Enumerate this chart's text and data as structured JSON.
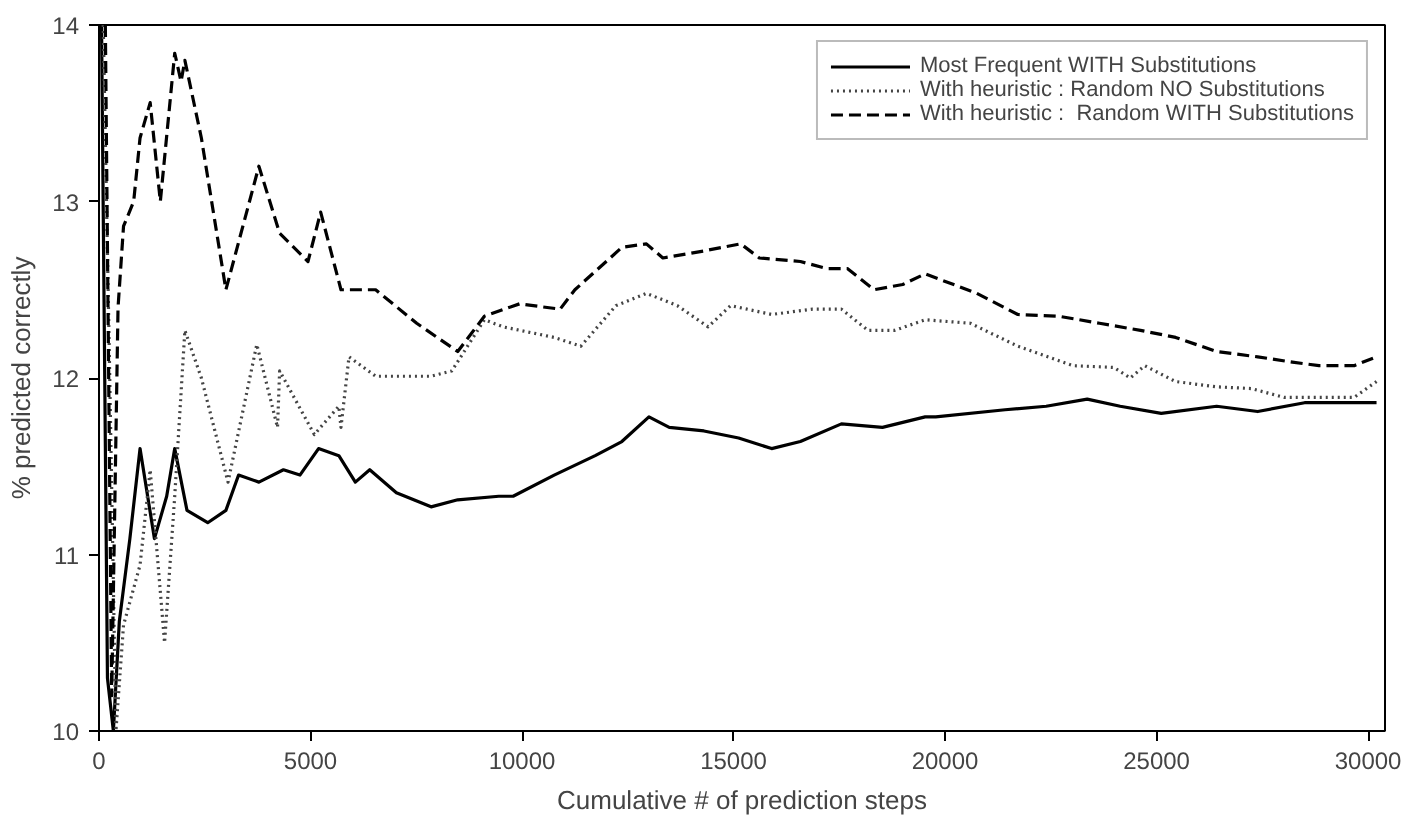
{
  "chart_data": {
    "type": "line",
    "xlabel": "Cumulative # of prediction steps",
    "ylabel": "% predicted correctly",
    "xlim": [
      0,
      30400
    ],
    "ylim": [
      10,
      14
    ],
    "xticks": [
      0,
      5000,
      10000,
      15000,
      20000,
      25000,
      30000
    ],
    "yticks": [
      10,
      11,
      12,
      13,
      14
    ],
    "grid": false,
    "legend": "top right",
    "marker": "none",
    "series": [
      {
        "name": "Most Frequent WITH Substitutions",
        "color": "#000000",
        "line_style": "solid",
        "x": [
          60,
          200,
          340,
          480,
          730,
          970,
          1310,
          1600,
          1790,
          2080,
          2570,
          3000,
          3300,
          3780,
          4360,
          4750,
          5190,
          5670,
          6060,
          6400,
          7030,
          7850,
          8480,
          9450,
          9790,
          10760,
          11730,
          12360,
          13000,
          13480,
          14300,
          15120,
          15900,
          16580,
          17550,
          18520,
          19530,
          19780,
          21420,
          22390,
          23360,
          24140,
          25110,
          26420,
          27390,
          28500,
          30200
        ],
        "values": [
          14.0,
          10.3,
          10.0,
          10.62,
          11.09,
          11.6,
          11.09,
          11.33,
          11.6,
          11.25,
          11.18,
          11.25,
          11.45,
          11.41,
          11.48,
          11.45,
          11.6,
          11.56,
          11.41,
          11.48,
          11.35,
          11.27,
          11.31,
          11.33,
          11.33,
          11.45,
          11.56,
          11.64,
          11.78,
          11.72,
          11.7,
          11.66,
          11.6,
          11.64,
          11.74,
          11.72,
          11.78,
          11.78,
          11.82,
          11.84,
          11.88,
          11.84,
          11.8,
          11.84,
          11.81,
          11.86,
          11.86
        ]
      },
      {
        "name": "With heuristic : Random NO Substitutions",
        "color": "#444444",
        "line_style": "dotted",
        "x": [
          100,
          240,
          400,
          580,
          970,
          1210,
          1550,
          1790,
          2030,
          2420,
          3050,
          3730,
          4220,
          4270,
          5090,
          5670,
          5720,
          5910,
          6540,
          7850,
          8340,
          9110,
          9550,
          10760,
          11390,
          12220,
          12940,
          13670,
          14400,
          14930,
          15900,
          16870,
          17550,
          18180,
          18810,
          19530,
          20600,
          21720,
          23020,
          23990,
          24380,
          24720,
          25450,
          26420,
          27240,
          28020,
          28990,
          29670,
          30200
        ],
        "values": [
          14.0,
          12.19,
          10.0,
          10.6,
          10.94,
          11.48,
          10.5,
          11.33,
          12.27,
          12.0,
          11.41,
          12.19,
          11.72,
          12.04,
          11.68,
          11.84,
          11.72,
          12.12,
          12.01,
          12.01,
          12.04,
          12.33,
          12.29,
          12.23,
          12.18,
          12.41,
          12.48,
          12.41,
          12.29,
          12.41,
          12.36,
          12.39,
          12.39,
          12.27,
          12.27,
          12.33,
          12.31,
          12.18,
          12.07,
          12.06,
          12.0,
          12.07,
          11.98,
          11.95,
          11.94,
          11.89,
          11.89,
          11.89,
          11.98
        ]
      },
      {
        "name": "With heuristic :  Random WITH Substitutions",
        "color": "#000000",
        "line_style": "dashed",
        "x": [
          150,
          300,
          450,
          580,
          820,
          970,
          1210,
          1450,
          1790,
          1940,
          2030,
          2420,
          3000,
          3780,
          4270,
          4940,
          5240,
          5720,
          6540,
          7510,
          8480,
          9110,
          9940,
          10900,
          11250,
          12360,
          12940,
          13330,
          14300,
          15170,
          15610,
          16580,
          17210,
          17690,
          18320,
          19000,
          19530,
          20750,
          21720,
          22690,
          23650,
          24620,
          25450,
          26420,
          27390,
          28210,
          28840,
          29670,
          30200
        ],
        "values": [
          14.0,
          10.2,
          12.4,
          12.86,
          13.0,
          13.36,
          13.56,
          13.0,
          13.84,
          13.68,
          13.8,
          13.36,
          12.5,
          13.2,
          12.82,
          12.66,
          12.94,
          12.5,
          12.5,
          12.31,
          12.15,
          12.35,
          12.42,
          12.39,
          12.5,
          12.74,
          12.76,
          12.68,
          12.72,
          12.76,
          12.68,
          12.66,
          12.62,
          12.62,
          12.5,
          12.53,
          12.59,
          12.48,
          12.36,
          12.35,
          12.31,
          12.27,
          12.23,
          12.15,
          12.12,
          12.09,
          12.07,
          12.07,
          12.12
        ]
      }
    ]
  }
}
